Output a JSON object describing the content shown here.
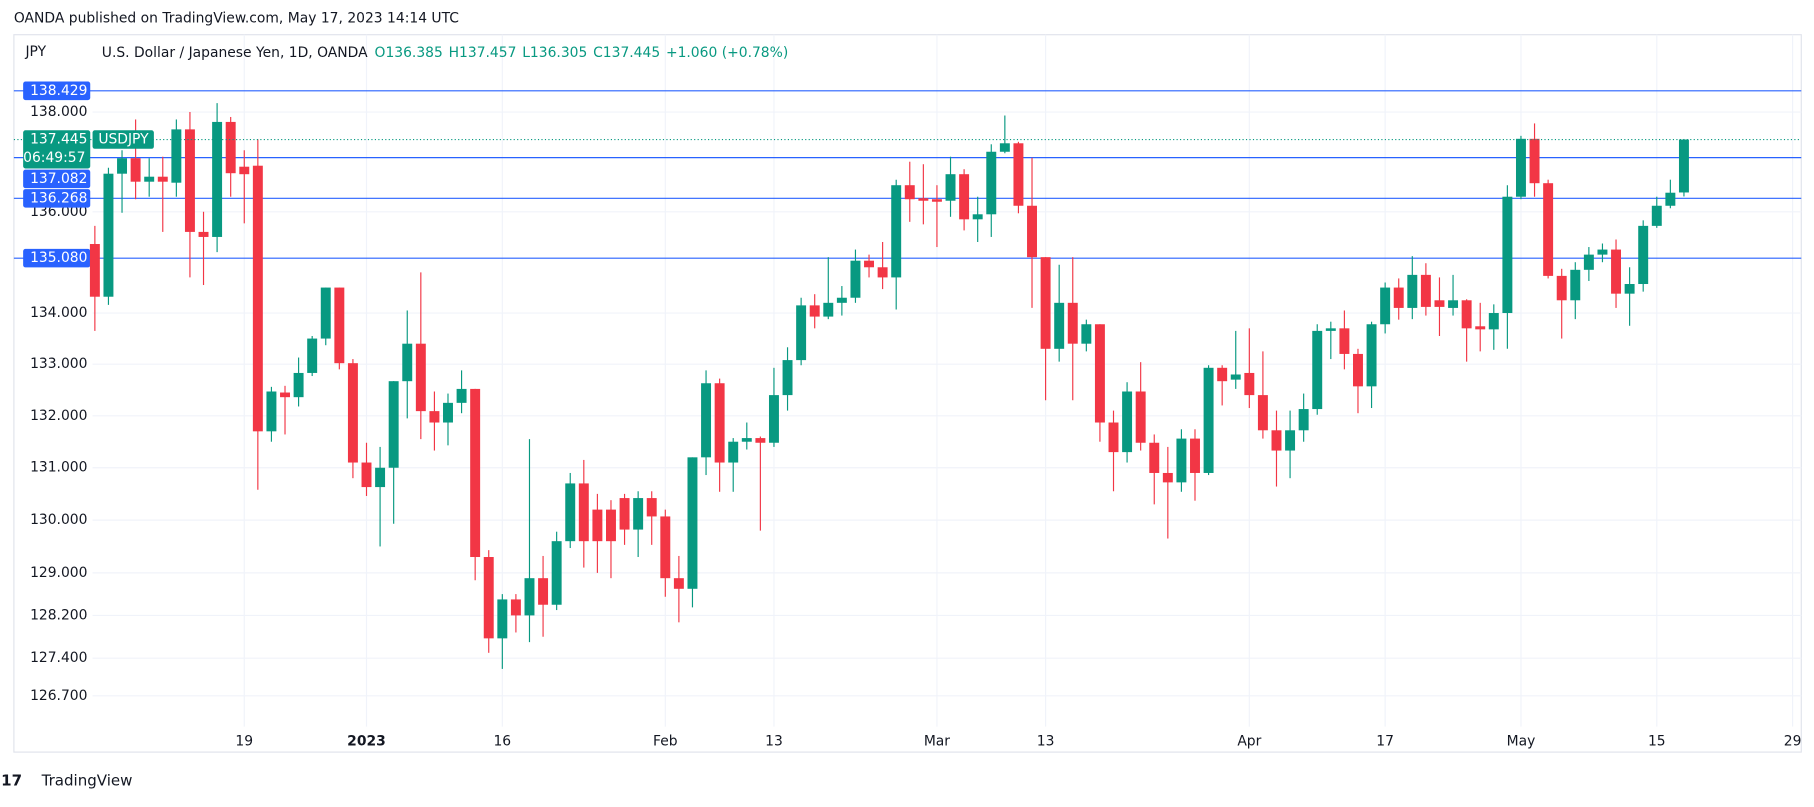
{
  "header": "OANDA published on TradingView.com, May 17, 2023 14:14 UTC",
  "footer": "TradingView",
  "chart_data": {
    "type": "candlestick",
    "currency": "JPY",
    "log_scale": true,
    "grid": true,
    "legend": {
      "title": "U.S. Dollar / Japanese Yen, 1D, OANDA",
      "values": [
        "O136.385",
        "H137.457",
        "L136.305",
        "C137.445",
        "+1.060 (+0.78%)"
      ]
    },
    "up_color": "#089981",
    "down_color": "#f23645",
    "level_color": "#2962ff",
    "price_tag": {
      "value": 137.445,
      "symbol": "USDJPY",
      "countdown": "06:49:57"
    },
    "levels": [
      138.429,
      137.082,
      136.268,
      {
        "value": 135.08,
        "label": "135.080"
      }
    ],
    "ylim": [
      126.13,
      139.57
    ],
    "yticks": [
      {
        "value": 126.7,
        "label": "126.700"
      },
      {
        "value": 127.4,
        "label": "127.400"
      },
      {
        "value": 128.2,
        "label": "128.200"
      },
      {
        "value": 129,
        "label": "129.000"
      },
      {
        "value": 130,
        "label": "130.000"
      },
      {
        "value": 131,
        "label": "131.000"
      },
      {
        "value": 132,
        "label": "132.000"
      },
      {
        "value": 133,
        "label": "133.000"
      },
      {
        "value": 134,
        "label": "134.000"
      },
      {
        "value": 136,
        "label": "136.000"
      },
      {
        "value": 138,
        "label": "138.000"
      }
    ],
    "categories": [
      null,
      null,
      null,
      null,
      null,
      null,
      null,
      null,
      null,
      null,
      null,
      "19",
      null,
      null,
      null,
      null,
      null,
      null,
      null,
      null,
      "2023",
      null,
      null,
      null,
      null,
      null,
      null,
      null,
      null,
      null,
      "16",
      null,
      null,
      null,
      null,
      null,
      null,
      null,
      null,
      null,
      null,
      null,
      "Feb",
      null,
      null,
      null,
      null,
      null,
      null,
      null,
      "13",
      null,
      null,
      null,
      null,
      null,
      null,
      null,
      null,
      null,
      null,
      null,
      "Mar",
      null,
      null,
      null,
      null,
      null,
      null,
      null,
      "13",
      null,
      null,
      null,
      null,
      null,
      null,
      null,
      null,
      null,
      null,
      null,
      null,
      null,
      null,
      "Apr",
      null,
      null,
      null,
      null,
      null,
      null,
      null,
      null,
      null,
      "17",
      null,
      null,
      null,
      null,
      null,
      null,
      null,
      null,
      null,
      "May",
      null,
      null,
      null,
      null,
      null,
      null,
      null,
      null,
      null,
      "15",
      null,
      null,
      null,
      null,
      null,
      null,
      null,
      null,
      null,
      "29"
    ],
    "open": [
      135.36,
      134.32,
      136.76,
      137.07,
      136.6,
      136.7,
      136.58,
      137.65,
      135.6,
      135.5,
      137.8,
      136.9,
      136.92,
      131.7,
      132.45,
      132.36,
      132.83,
      133.5,
      134.5,
      133.02,
      131.1,
      130.63,
      131.0,
      132.67,
      133.4,
      132.09,
      131.87,
      132.25,
      132.52,
      129.3,
      127.77,
      128.5,
      128.2,
      128.9,
      128.4,
      129.6,
      130.7,
      130.2,
      130.2,
      130.42,
      129.82,
      130.42,
      130.07,
      128.9,
      128.7,
      131.2,
      132.63,
      131.1,
      131.5,
      131.57,
      131.48,
      132.4,
      133.08,
      134.15,
      133.93,
      134.2,
      134.3,
      135.03,
      134.9,
      134.7,
      136.53,
      136.27,
      136.25,
      136.22,
      136.75,
      135.85,
      135.95,
      137.2,
      137.37,
      136.12,
      135.1,
      133.3,
      134.2,
      133.4,
      133.78,
      131.87,
      131.3,
      132.47,
      131.48,
      130.9,
      130.72,
      131.56,
      130.9,
      132.93,
      132.7,
      132.83,
      132.4,
      131.72,
      131.33,
      131.72,
      132.13,
      133.65,
      133.7,
      133.2,
      132.57,
      133.78,
      134.5,
      134.1,
      134.75,
      134.25,
      134.1,
      134.25,
      133.74,
      133.68,
      134.0,
      136.3,
      137.46,
      136.57,
      134.73,
      134.25,
      134.85,
      135.15,
      135.25,
      134.38,
      134.57,
      135.72,
      136.12,
      136.385,
      null,
      null,
      null,
      null,
      null,
      null,
      null,
      null
    ],
    "high": [
      135.72,
      136.88,
      137.23,
      137.85,
      137.07,
      137.1,
      137.85,
      138.0,
      136.0,
      138.18,
      137.9,
      137.23,
      137.45,
      132.56,
      132.58,
      133.13,
      133.55,
      134.5,
      134.5,
      133.1,
      131.48,
      131.4,
      132.67,
      134.05,
      134.8,
      132.47,
      132.43,
      132.88,
      132.52,
      129.43,
      128.6,
      128.6,
      131.55,
      129.32,
      129.78,
      130.9,
      131.15,
      130.5,
      130.38,
      130.5,
      130.55,
      130.55,
      130.2,
      129.32,
      131.2,
      132.88,
      132.72,
      131.57,
      131.87,
      131.6,
      132.93,
      133.33,
      134.3,
      134.37,
      135.1,
      134.53,
      135.25,
      135.15,
      135.4,
      136.64,
      137.0,
      136.95,
      136.53,
      137.1,
      136.85,
      136.3,
      137.35,
      137.93,
      137.4,
      137.08,
      135.1,
      134.95,
      135.1,
      133.87,
      133.78,
      132.1,
      132.65,
      133.04,
      131.64,
      131.4,
      131.74,
      131.74,
      132.98,
      132.98,
      133.65,
      133.7,
      133.25,
      132.1,
      132.1,
      132.43,
      133.78,
      133.83,
      134.05,
      133.3,
      133.83,
      134.6,
      134.68,
      135.12,
      134.98,
      134.7,
      134.75,
      134.27,
      134.2,
      134.17,
      136.53,
      137.52,
      137.77,
      136.64,
      134.87,
      135.0,
      135.3,
      135.37,
      135.45,
      134.9,
      135.83,
      136.3,
      136.64,
      137.457,
      null,
      null,
      null,
      null,
      null,
      null,
      null,
      null
    ],
    "low": [
      133.65,
      134.16,
      135.98,
      136.25,
      136.3,
      135.6,
      136.3,
      134.7,
      134.55,
      135.2,
      136.3,
      135.77,
      130.58,
      131.5,
      131.64,
      132.18,
      132.77,
      133.37,
      132.9,
      130.8,
      130.46,
      129.5,
      129.93,
      131.95,
      131.55,
      131.33,
      131.43,
      132.05,
      128.86,
      127.5,
      127.2,
      127.88,
      127.7,
      127.8,
      128.3,
      129.47,
      129.1,
      129.0,
      128.9,
      129.53,
      129.3,
      129.53,
      128.55,
      128.07,
      128.35,
      130.86,
      130.54,
      130.54,
      131.35,
      129.8,
      131.4,
      132.1,
      132.98,
      133.7,
      133.88,
      133.95,
      134.2,
      134.7,
      134.47,
      134.07,
      135.8,
      135.75,
      135.3,
      135.9,
      135.63,
      135.4,
      135.5,
      137.17,
      135.97,
      134.1,
      132.3,
      133.05,
      132.3,
      133.25,
      131.5,
      130.55,
      131.1,
      131.33,
      130.3,
      129.65,
      130.54,
      130.37,
      130.86,
      132.2,
      132.52,
      132.15,
      131.56,
      130.64,
      130.8,
      131.5,
      132.02,
      133.1,
      132.9,
      132.05,
      132.15,
      133.6,
      133.87,
      133.88,
      133.95,
      133.55,
      133.95,
      133.05,
      133.25,
      133.28,
      133.3,
      136.25,
      136.3,
      134.68,
      133.5,
      133.88,
      134.63,
      135.0,
      134.1,
      133.75,
      134.42,
      135.68,
      136.07,
      136.305,
      null,
      null,
      null,
      null,
      null,
      null,
      null,
      null
    ],
    "close": [
      134.32,
      136.76,
      137.07,
      136.6,
      136.7,
      136.6,
      137.65,
      135.6,
      135.5,
      137.8,
      136.77,
      136.75,
      131.7,
      132.47,
      132.36,
      132.83,
      133.5,
      134.5,
      133.02,
      131.1,
      130.63,
      131.0,
      132.67,
      133.4,
      132.09,
      131.87,
      132.25,
      132.52,
      129.3,
      127.77,
      128.5,
      128.2,
      128.9,
      128.4,
      129.6,
      130.7,
      129.6,
      129.6,
      129.6,
      129.82,
      130.42,
      130.07,
      128.9,
      128.7,
      131.2,
      132.63,
      131.1,
      131.5,
      131.57,
      131.48,
      132.4,
      133.08,
      134.15,
      133.93,
      134.2,
      134.3,
      135.03,
      134.9,
      134.7,
      136.53,
      136.25,
      136.22,
      136.2,
      136.75,
      135.85,
      135.95,
      137.2,
      137.37,
      136.12,
      135.1,
      133.3,
      134.2,
      133.4,
      133.78,
      131.87,
      131.3,
      132.47,
      131.48,
      130.9,
      130.72,
      131.56,
      130.9,
      132.93,
      132.67,
      132.8,
      132.4,
      131.72,
      131.33,
      131.72,
      132.13,
      133.65,
      133.7,
      133.2,
      132.57,
      133.78,
      134.5,
      134.1,
      134.75,
      134.12,
      134.12,
      134.25,
      133.7,
      133.68,
      134.0,
      136.3,
      137.46,
      136.57,
      134.73,
      134.25,
      134.85,
      135.15,
      135.25,
      134.38,
      134.57,
      135.72,
      136.12,
      136.38,
      137.445,
      null,
      null,
      null,
      null,
      null,
      null,
      null,
      null
    ]
  }
}
